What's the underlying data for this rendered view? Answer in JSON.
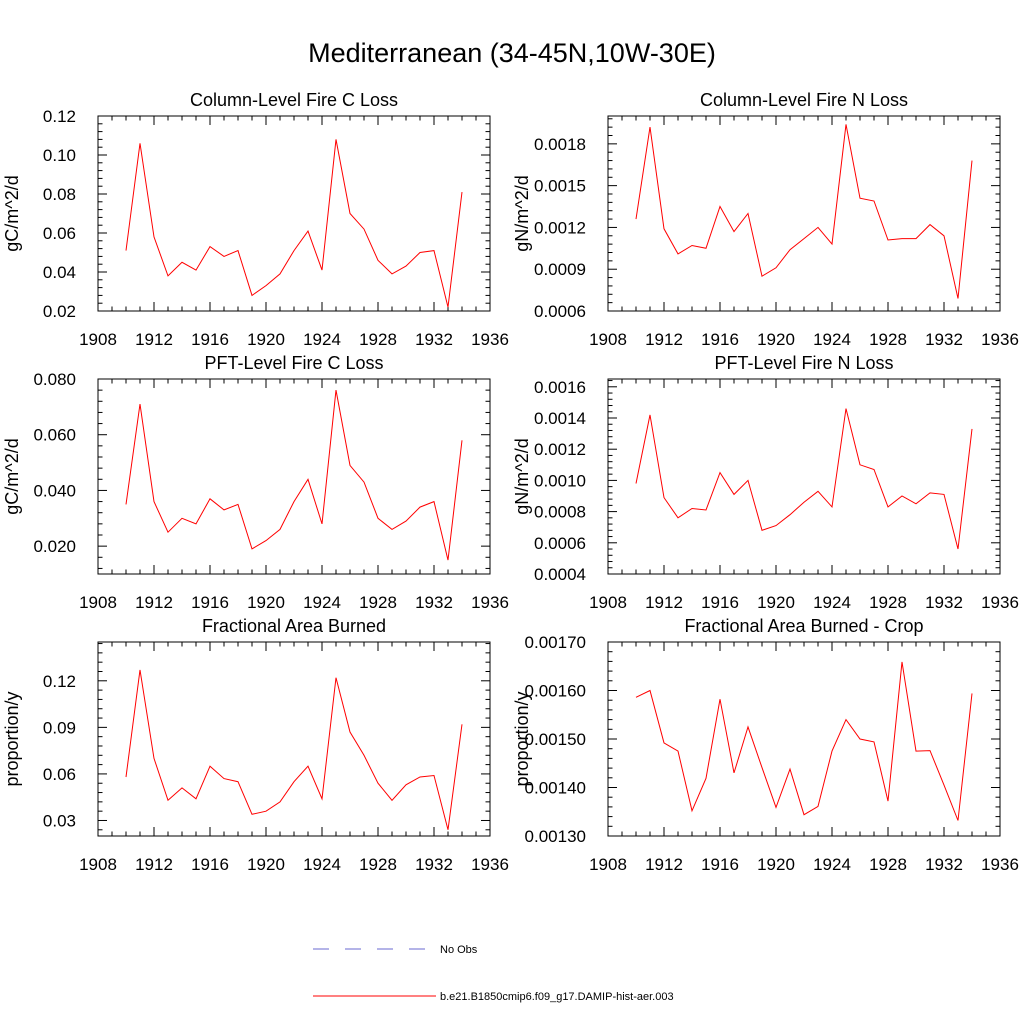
{
  "title": "Mediterranean (34-45N,10W-30E)",
  "legend": {
    "items": [
      {
        "label": "No Obs",
        "color": "#6a6ad0",
        "style": "dashed"
      },
      {
        "label": "b.e21.B1850cmip6.f09_g17.DAMIP-hist-aer.003",
        "color": "#ff0000",
        "style": "solid"
      }
    ]
  },
  "chart_data": [
    {
      "type": "line",
      "title": "Column-Level Fire C Loss",
      "ylabel": "gC/m^2/d",
      "xlim": [
        1908,
        1936
      ],
      "ylim": [
        0.02,
        0.12
      ],
      "xticks": [
        "1908",
        "1912",
        "1916",
        "1920",
        "1924",
        "1928",
        "1932",
        "1936"
      ],
      "yticks": [
        0.02,
        0.04,
        0.06,
        0.08,
        0.1,
        0.12
      ],
      "ytick_labels": [
        "0.02",
        "0.04",
        "0.06",
        "0.08",
        "0.10",
        "0.12"
      ],
      "x": [
        1910,
        1911,
        1912,
        1913,
        1914,
        1915,
        1916,
        1917,
        1918,
        1919,
        1920,
        1921,
        1922,
        1923,
        1924,
        1925,
        1926,
        1927,
        1928,
        1929,
        1930,
        1931,
        1932,
        1933,
        1934
      ],
      "series": [
        {
          "name": "b.e21.B1850cmip6.f09_g17.DAMIP-hist-aer.003",
          "values": [
            0.051,
            0.106,
            0.058,
            0.038,
            0.045,
            0.041,
            0.053,
            0.048,
            0.051,
            0.028,
            0.033,
            0.039,
            0.051,
            0.061,
            0.041,
            0.108,
            0.07,
            0.062,
            0.046,
            0.039,
            0.043,
            0.05,
            0.051,
            0.022,
            0.081
          ]
        }
      ]
    },
    {
      "type": "line",
      "title": "Column-Level Fire N Loss",
      "ylabel": "gN/m^2/d",
      "xlim": [
        1908,
        1936
      ],
      "ylim": [
        0.0006,
        0.002
      ],
      "xticks": [
        "1908",
        "1912",
        "1916",
        "1920",
        "1924",
        "1928",
        "1932",
        "1936"
      ],
      "yticks": [
        0.0006,
        0.0009,
        0.0012,
        0.0015,
        0.0018
      ],
      "ytick_labels": [
        "0.0006",
        "0.0009",
        "0.0012",
        "0.0015",
        "0.0018"
      ],
      "x": [
        1910,
        1911,
        1912,
        1913,
        1914,
        1915,
        1916,
        1917,
        1918,
        1919,
        1920,
        1921,
        1922,
        1923,
        1924,
        1925,
        1926,
        1927,
        1928,
        1929,
        1930,
        1931,
        1932,
        1933,
        1934
      ],
      "series": [
        {
          "name": "b.e21.B1850cmip6.f09_g17.DAMIP-hist-aer.003",
          "values": [
            0.00126,
            0.00192,
            0.00119,
            0.00101,
            0.00107,
            0.00105,
            0.00135,
            0.00117,
            0.0013,
            0.00085,
            0.00091,
            0.00104,
            0.00112,
            0.0012,
            0.00108,
            0.00194,
            0.00141,
            0.00139,
            0.00111,
            0.00112,
            0.00112,
            0.00122,
            0.00114,
            0.00069,
            0.00168
          ]
        }
      ]
    },
    {
      "type": "line",
      "title": "PFT-Level Fire C Loss",
      "ylabel": "gC/m^2/d",
      "xlim": [
        1908,
        1936
      ],
      "ylim": [
        0.01,
        0.08
      ],
      "xticks": [
        "1908",
        "1912",
        "1916",
        "1920",
        "1924",
        "1928",
        "1932",
        "1936"
      ],
      "yticks": [
        0.02,
        0.04,
        0.06,
        0.08
      ],
      "ytick_labels": [
        "0.020",
        "0.040",
        "0.060",
        "0.080"
      ],
      "x": [
        1910,
        1911,
        1912,
        1913,
        1914,
        1915,
        1916,
        1917,
        1918,
        1919,
        1920,
        1921,
        1922,
        1923,
        1924,
        1925,
        1926,
        1927,
        1928,
        1929,
        1930,
        1931,
        1932,
        1933,
        1934
      ],
      "series": [
        {
          "name": "b.e21.B1850cmip6.f09_g17.DAMIP-hist-aer.003",
          "values": [
            0.035,
            0.071,
            0.036,
            0.025,
            0.03,
            0.028,
            0.037,
            0.033,
            0.035,
            0.019,
            0.022,
            0.026,
            0.036,
            0.044,
            0.028,
            0.076,
            0.049,
            0.043,
            0.03,
            0.026,
            0.029,
            0.034,
            0.036,
            0.015,
            0.058
          ]
        }
      ]
    },
    {
      "type": "line",
      "title": "PFT-Level Fire N Loss",
      "ylabel": "gN/m^2/d",
      "xlim": [
        1908,
        1936
      ],
      "ylim": [
        0.0004,
        0.00165
      ],
      "xticks": [
        "1908",
        "1912",
        "1916",
        "1920",
        "1924",
        "1928",
        "1932",
        "1936"
      ],
      "yticks": [
        0.0004,
        0.0006,
        0.0008,
        0.001,
        0.0012,
        0.0014,
        0.0016
      ],
      "ytick_labels": [
        "0.0004",
        "0.0006",
        "0.0008",
        "0.0010",
        "0.0012",
        "0.0014",
        "0.0016"
      ],
      "x": [
        1910,
        1911,
        1912,
        1913,
        1914,
        1915,
        1916,
        1917,
        1918,
        1919,
        1920,
        1921,
        1922,
        1923,
        1924,
        1925,
        1926,
        1927,
        1928,
        1929,
        1930,
        1931,
        1932,
        1933,
        1934
      ],
      "series": [
        {
          "name": "b.e21.B1850cmip6.f09_g17.DAMIP-hist-aer.003",
          "values": [
            0.00098,
            0.00142,
            0.00089,
            0.00076,
            0.00082,
            0.00081,
            0.00105,
            0.00091,
            0.001,
            0.00068,
            0.00071,
            0.00078,
            0.00086,
            0.00093,
            0.00083,
            0.00146,
            0.0011,
            0.00107,
            0.00083,
            0.0009,
            0.00085,
            0.00092,
            0.00091,
            0.00056,
            0.00133
          ]
        }
      ]
    },
    {
      "type": "line",
      "title": "Fractional Area Burned",
      "ylabel": "proportion/y",
      "xlim": [
        1908,
        1936
      ],
      "ylim": [
        0.02,
        0.145
      ],
      "xticks": [
        "1908",
        "1912",
        "1916",
        "1920",
        "1924",
        "1928",
        "1932",
        "1936"
      ],
      "yticks": [
        0.03,
        0.06,
        0.09,
        0.12
      ],
      "ytick_labels": [
        "0.03",
        "0.06",
        "0.09",
        "0.12"
      ],
      "x": [
        1910,
        1911,
        1912,
        1913,
        1914,
        1915,
        1916,
        1917,
        1918,
        1919,
        1920,
        1921,
        1922,
        1923,
        1924,
        1925,
        1926,
        1927,
        1928,
        1929,
        1930,
        1931,
        1932,
        1933,
        1934
      ],
      "series": [
        {
          "name": "b.e21.B1850cmip6.f09_g17.DAMIP-hist-aer.003",
          "values": [
            0.058,
            0.127,
            0.07,
            0.043,
            0.051,
            0.044,
            0.065,
            0.057,
            0.055,
            0.034,
            0.036,
            0.042,
            0.055,
            0.065,
            0.044,
            0.122,
            0.087,
            0.072,
            0.054,
            0.043,
            0.053,
            0.058,
            0.059,
            0.024,
            0.092
          ]
        }
      ]
    },
    {
      "type": "line",
      "title": "Fractional Area Burned - Crop",
      "ylabel": "proportion/y",
      "xlim": [
        1908,
        1936
      ],
      "ylim": [
        0.0013,
        0.0017
      ],
      "xticks": [
        "1908",
        "1912",
        "1916",
        "1920",
        "1924",
        "1928",
        "1932",
        "1936"
      ],
      "yticks": [
        0.0013,
        0.0014,
        0.0015,
        0.0016,
        0.0017
      ],
      "ytick_labels": [
        "0.00130",
        "0.00140",
        "0.00150",
        "0.00160",
        "0.00170"
      ],
      "x": [
        1910,
        1911,
        1912,
        1913,
        1914,
        1915,
        1916,
        1917,
        1918,
        1919,
        1920,
        1921,
        1922,
        1923,
        1924,
        1925,
        1926,
        1927,
        1928,
        1929,
        1930,
        1931,
        1932,
        1933,
        1934
      ],
      "series": [
        {
          "name": "b.e21.B1850cmip6.f09_g17.DAMIP-hist-aer.003",
          "values": [
            0.001586,
            0.0016,
            0.001492,
            0.001475,
            0.001352,
            0.001419,
            0.001582,
            0.00143,
            0.001525,
            0.001441,
            0.001359,
            0.001438,
            0.001344,
            0.001361,
            0.001475,
            0.00154,
            0.0015,
            0.001494,
            0.001372,
            0.001659,
            0.001475,
            0.001476,
            0.001405,
            0.001332,
            0.001594
          ]
        }
      ]
    }
  ]
}
